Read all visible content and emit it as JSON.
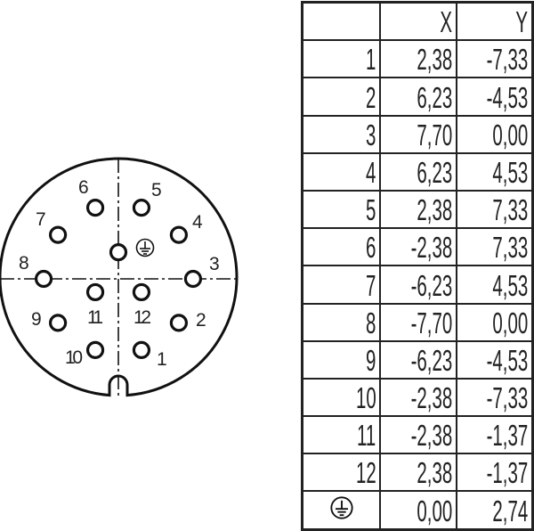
{
  "diagram": {
    "pins": [
      {
        "label": "1",
        "x": 2.38,
        "y": -7.33
      },
      {
        "label": "2",
        "x": 6.23,
        "y": -4.53
      },
      {
        "label": "3",
        "x": 7.7,
        "y": 0.0
      },
      {
        "label": "4",
        "x": 6.23,
        "y": 4.53
      },
      {
        "label": "5",
        "x": 2.38,
        "y": 7.33
      },
      {
        "label": "6",
        "x": -2.38,
        "y": 7.33
      },
      {
        "label": "7",
        "x": -6.23,
        "y": 4.53
      },
      {
        "label": "8",
        "x": -7.7,
        "y": 0.0
      },
      {
        "label": "9",
        "x": -6.23,
        "y": -4.53
      },
      {
        "label": "10",
        "x": -2.38,
        "y": -7.33
      },
      {
        "label": "11",
        "x": -2.38,
        "y": -1.37
      },
      {
        "label": "12",
        "x": 2.38,
        "y": -1.37
      },
      {
        "label": "earth-icon",
        "x": 0.0,
        "y": 2.74
      }
    ]
  },
  "table": {
    "headers": [
      "",
      "X",
      "Y"
    ],
    "rows": [
      [
        "1",
        "2,38",
        "-7,33"
      ],
      [
        "2",
        "6,23",
        "-4,53"
      ],
      [
        "3",
        "7,70",
        "0,00"
      ],
      [
        "4",
        "6,23",
        "4,53"
      ],
      [
        "5",
        "2,38",
        "7,33"
      ],
      [
        "6",
        "-2,38",
        "7,33"
      ],
      [
        "7",
        "-6,23",
        "4,53"
      ],
      [
        "8",
        "-7,70",
        "0,00"
      ],
      [
        "9",
        "-6,23",
        "-4,53"
      ],
      [
        "10",
        "-2,38",
        "-7,33"
      ],
      [
        "11",
        "-2,38",
        "-1,37"
      ],
      [
        "12",
        "2,38",
        "-1,37"
      ],
      [
        "earth-icon",
        "0,00",
        "2,74"
      ]
    ]
  }
}
